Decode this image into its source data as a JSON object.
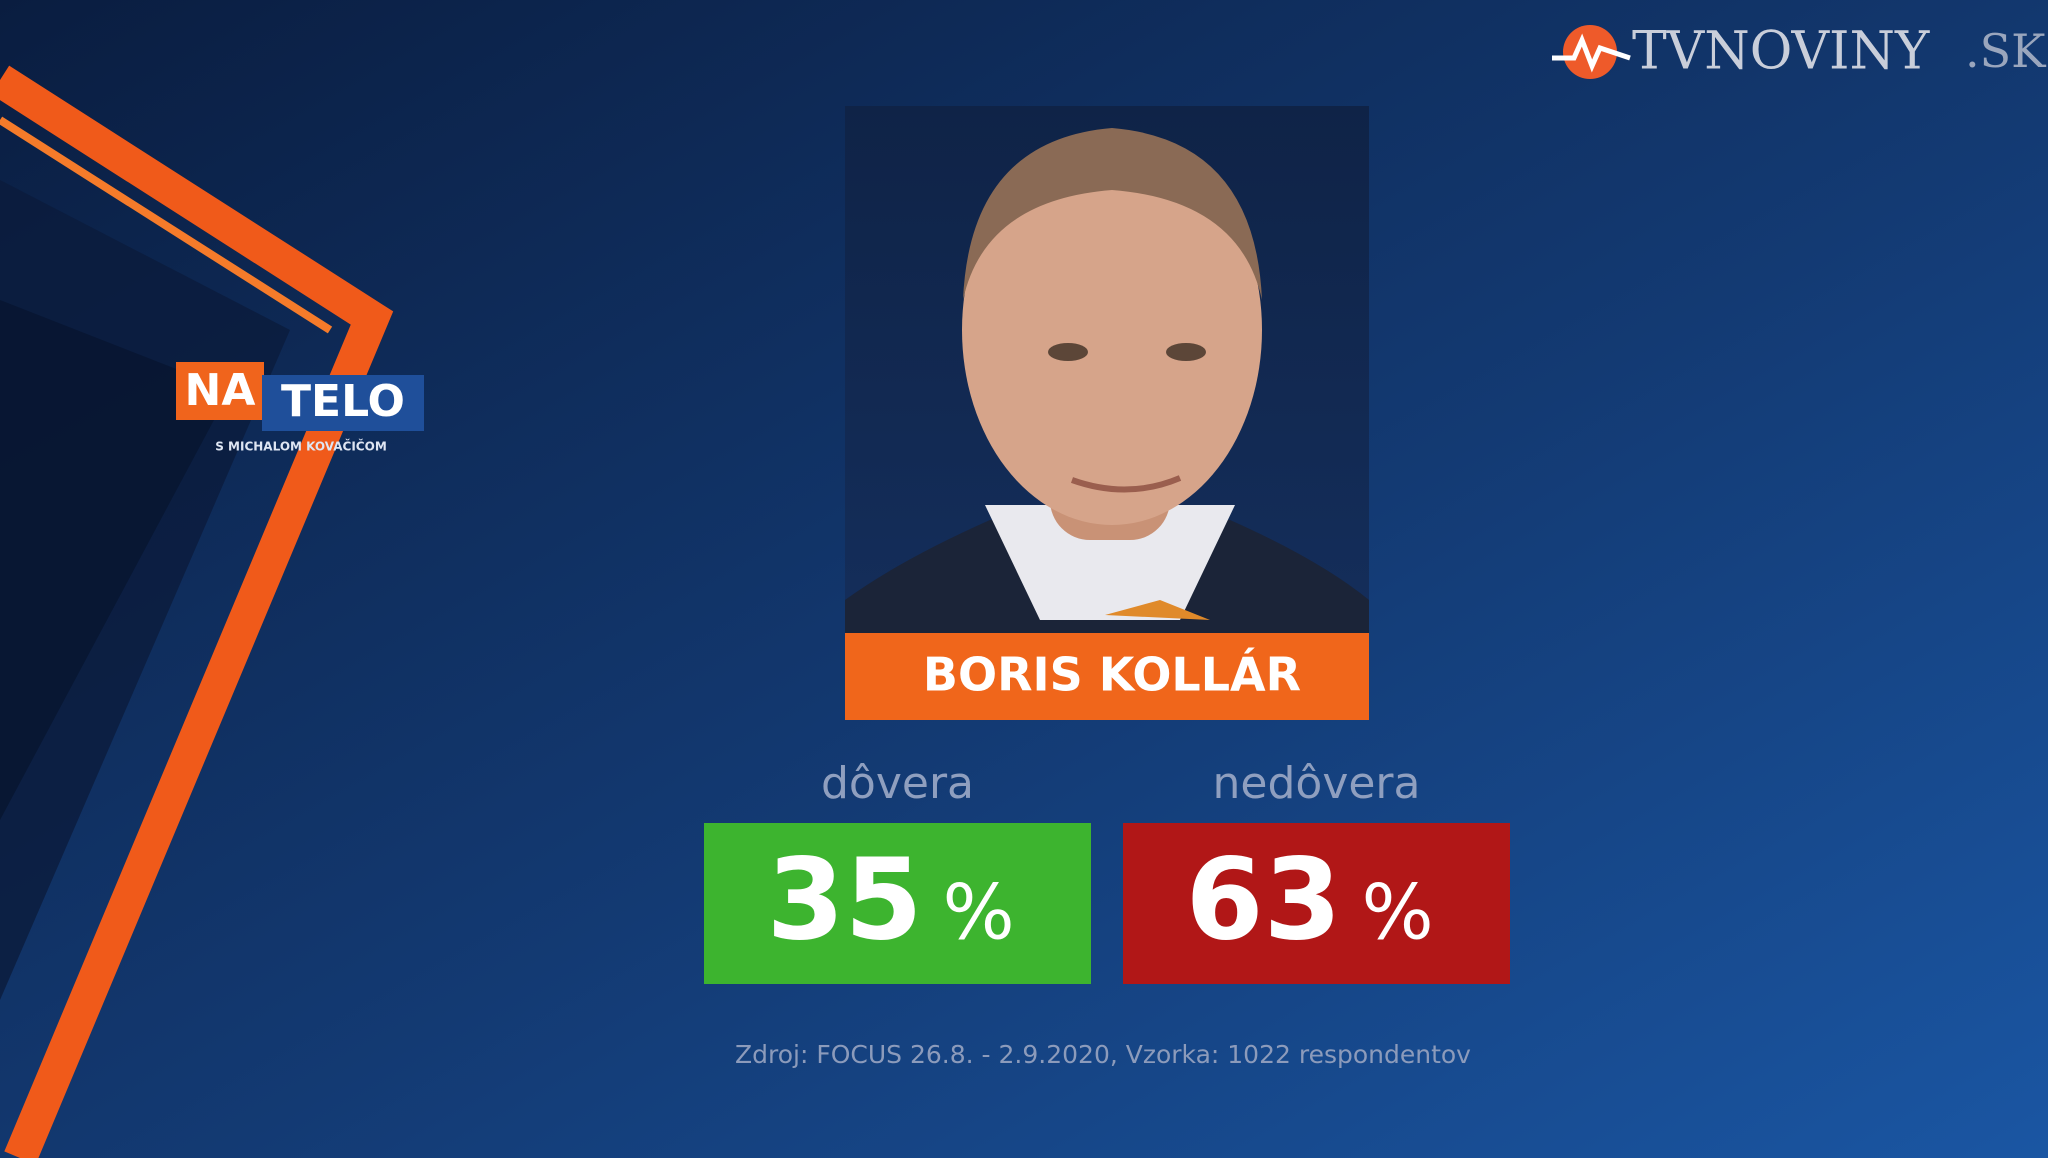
{
  "logo": {
    "show": {
      "left": "NA",
      "right": "TELO",
      "subtitle": "S MICHALOM KOVAČIČOM"
    },
    "channel": {
      "name": "TVNOVINY",
      "domain": ".SK"
    }
  },
  "person": {
    "name": "BORIS KOLLÁR"
  },
  "results": [
    {
      "label": "dôvera",
      "value": 35,
      "unit": "%",
      "color": "#3db42f"
    },
    {
      "label": "nedôvera",
      "value": 63,
      "unit": "%",
      "color": "#b11717"
    }
  ],
  "source": "Zdroj: FOCUS 26.8. - 2.9.2020, Vzorka: 1022 respondentov"
}
